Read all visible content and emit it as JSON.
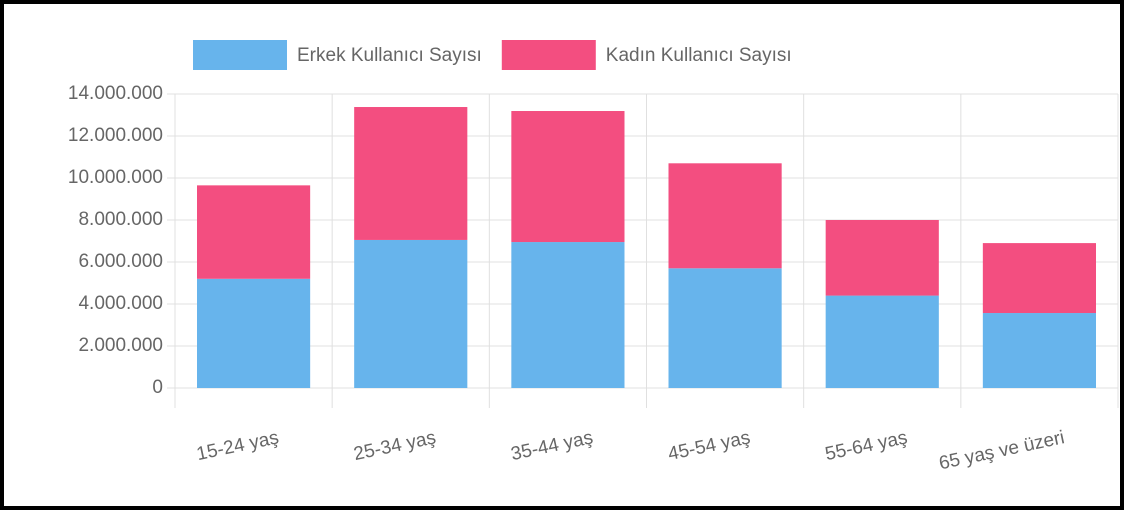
{
  "chart_data": {
    "type": "stacked-bar",
    "categories": [
      "15-24 yaş",
      "25-34 yaş",
      "35-44 yaş",
      "45-54 yaş",
      "55-64 yaş",
      "65 yaş ve üzeri"
    ],
    "series": [
      {
        "name": "Erkek Kullanıcı Sayısı",
        "color": "#67b4ec",
        "values": [
          5200000,
          7050000,
          6950000,
          5700000,
          4400000,
          3570000
        ]
      },
      {
        "name": "Kadın Kullanıcı Sayısı",
        "color": "#f34e80",
        "values": [
          4450000,
          6330000,
          6240000,
          5000000,
          3600000,
          3330000
        ]
      }
    ],
    "ylim": [
      0,
      14000000
    ],
    "yticks": [
      0,
      {
        "value": 2000000,
        "label": "2.000.000"
      },
      {
        "value": 4000000,
        "label": "4.000.000"
      },
      {
        "value": 6000000,
        "label": "6.000.000"
      },
      {
        "value": 8000000,
        "label": "8.000.000"
      },
      {
        "value": 10000000,
        "label": "10.000.000"
      },
      {
        "value": 12000000,
        "label": "12.000.000"
      },
      {
        "value": 14000000,
        "label": "14.000.000"
      }
    ],
    "grid": true,
    "legend": "top"
  }
}
